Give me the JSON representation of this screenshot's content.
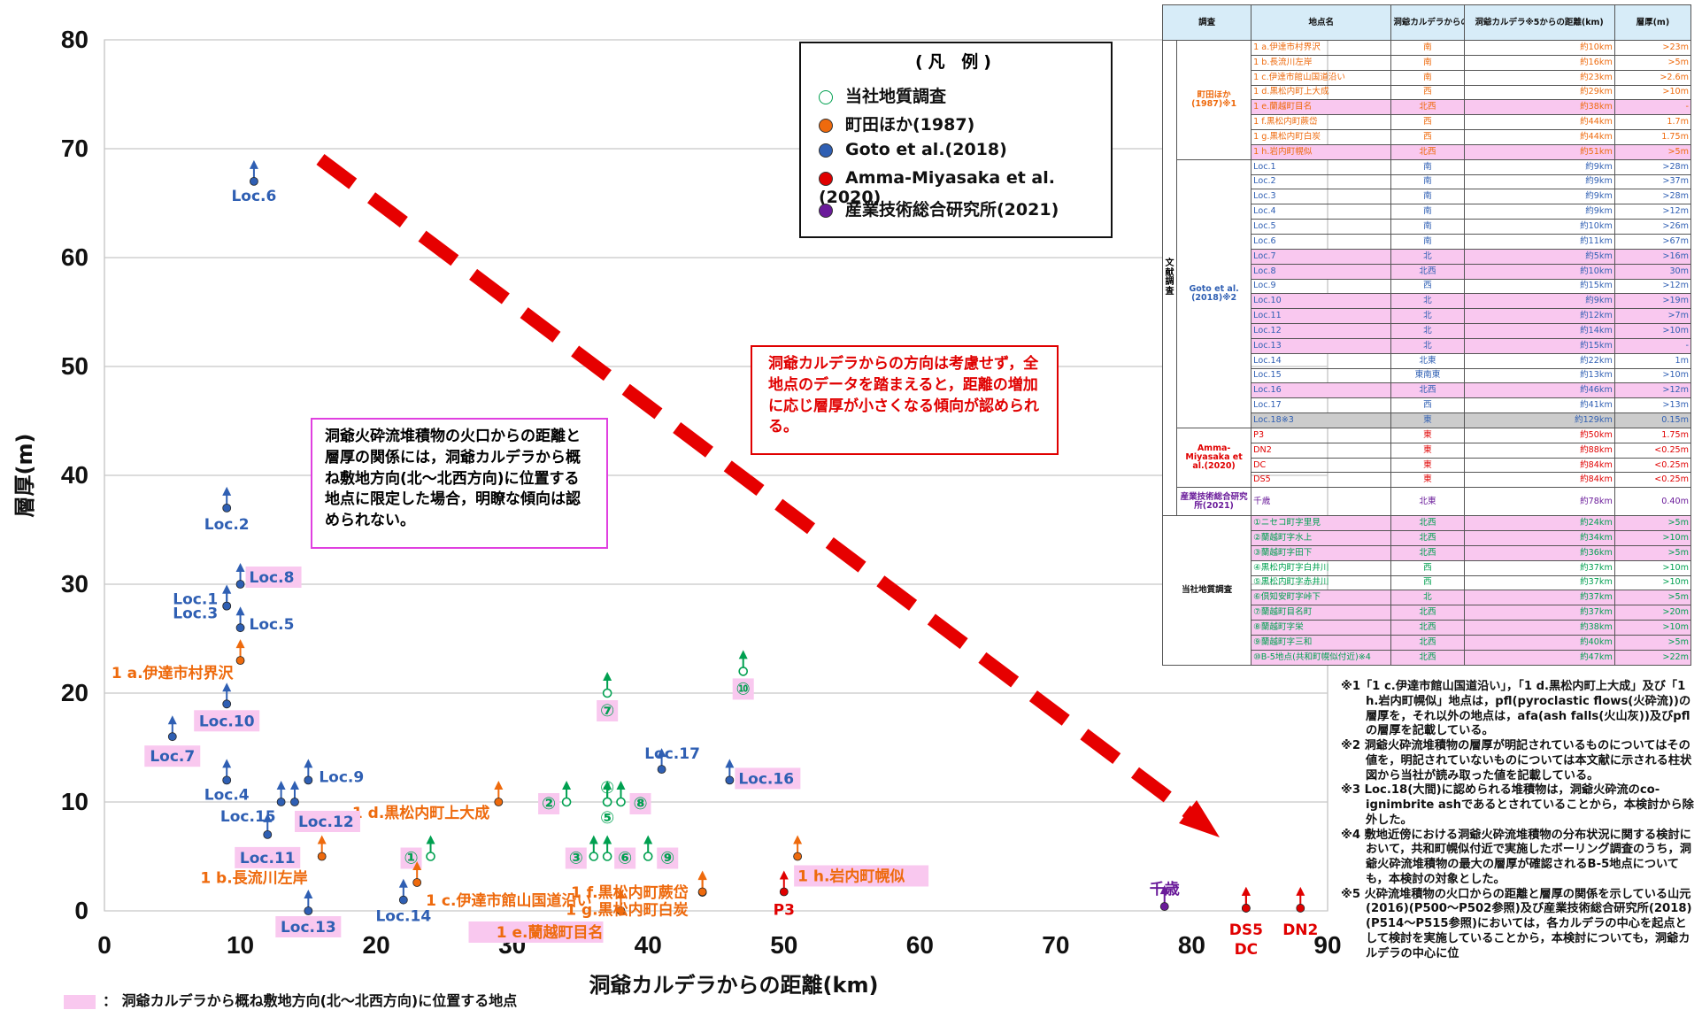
{
  "chart_data": {
    "type": "scatter",
    "xlabel": "洞爺カルデラからの距離(km)",
    "ylabel": "層厚(m)",
    "xlim": [
      0,
      90
    ],
    "ylim": [
      0,
      80
    ],
    "xticks": [
      "0",
      "10",
      "20",
      "30",
      "40",
      "50",
      "60",
      "70",
      "80",
      "90"
    ],
    "yticks": [
      "0",
      "10",
      "20",
      "30",
      "40",
      "50",
      "60",
      "70",
      "80"
    ],
    "grid": "horizontal",
    "legend_placement": "top-right",
    "series": [
      {
        "name": "当社地質調査",
        "color": "#00a050",
        "marker": "open-circle",
        "points": [
          {
            "label": "①",
            "x": 24,
            "y": 5
          },
          {
            "label": "②",
            "x": 34,
            "y": 10
          },
          {
            "label": "③",
            "x": 36,
            "y": 5
          },
          {
            "label": "④",
            "x": 37,
            "y": 10
          },
          {
            "label": "⑤",
            "x": 37,
            "y": 10
          },
          {
            "label": "⑥",
            "x": 37,
            "y": 5
          },
          {
            "label": "⑦",
            "x": 37,
            "y": 20
          },
          {
            "label": "⑧",
            "x": 38,
            "y": 10
          },
          {
            "label": "⑨",
            "x": 40,
            "y": 5
          },
          {
            "label": "⑩",
            "x": 47,
            "y": 22
          }
        ]
      },
      {
        "name": "町田ほか(1987)",
        "color": "#ee6a0d",
        "marker": "filled-circle",
        "points": [
          {
            "label": "1 a.伊達市村界沢",
            "x": 10,
            "y": 23
          },
          {
            "label": "1 b.長流川左岸",
            "x": 16,
            "y": 5
          },
          {
            "label": "1 c.伊達市館山国道沿い",
            "x": 23,
            "y": 2.6
          },
          {
            "label": "1 d.黒松内町上大成",
            "x": 29,
            "y": 10
          },
          {
            "label": "1 e.蘭越町目名",
            "x": 38,
            "y": 0
          },
          {
            "label": "1 f.黒松内町蕨岱",
            "x": 44,
            "y": 1.7
          },
          {
            "label": "1 g.黒松内町白炭",
            "x": 44,
            "y": 1.75
          },
          {
            "label": "1 h.岩内町幌似",
            "x": 51,
            "y": 5
          }
        ]
      },
      {
        "name": "Goto et al.(2018)",
        "color": "#2f5fb3",
        "marker": "filled-circle",
        "points": [
          {
            "label": "Loc.1",
            "x": 9,
            "y": 28
          },
          {
            "label": "Loc.2",
            "x": 9,
            "y": 37
          },
          {
            "label": "Loc.3",
            "x": 9,
            "y": 28
          },
          {
            "label": "Loc.4",
            "x": 9,
            "y": 12
          },
          {
            "label": "Loc.5",
            "x": 10,
            "y": 26
          },
          {
            "label": "Loc.6",
            "x": 11,
            "y": 67
          },
          {
            "label": "Loc.7",
            "x": 5,
            "y": 16
          },
          {
            "label": "Loc.8",
            "x": 10,
            "y": 30
          },
          {
            "label": "Loc.9",
            "x": 15,
            "y": 12
          },
          {
            "label": "Loc.10",
            "x": 9,
            "y": 19
          },
          {
            "label": "Loc.11",
            "x": 12,
            "y": 7
          },
          {
            "label": "Loc.12",
            "x": 14,
            "y": 10
          },
          {
            "label": "Loc.13",
            "x": 15,
            "y": 0
          },
          {
            "label": "Loc.14",
            "x": 22,
            "y": 1
          },
          {
            "label": "Loc.15",
            "x": 13,
            "y": 10
          },
          {
            "label": "Loc.16",
            "x": 46,
            "y": 12
          },
          {
            "label": "Loc.17",
            "x": 41,
            "y": 13
          }
        ]
      },
      {
        "name": "Amma-Miyasaka et al.(2020)",
        "color": "#e00000",
        "marker": "filled-circle",
        "points": [
          {
            "label": "P3",
            "x": 50,
            "y": 1.75
          },
          {
            "label": "DN2",
            "x": 88,
            "y": 0.25
          },
          {
            "label": "DC",
            "x": 84,
            "y": 0.25
          },
          {
            "label": "DS5",
            "x": 84,
            "y": 0.25
          }
        ]
      },
      {
        "name": "産業技術総合研究所(2021)",
        "color": "#6a1b9a",
        "marker": "filled-circle",
        "points": [
          {
            "label": "千歳",
            "x": 78,
            "y": 0.4
          }
        ]
      }
    ],
    "annotations": [
      "洞爺火砕流堆積物の火口からの距離と層厚の関係には，洞爺カルデラから概ね敷地方向(北～北西方向)に位置する地点に限定した場合，明瞭な傾向は認められない。",
      "洞爺カルデラからの方向は考慮せず，全地点のデータを踏まえると，距離の増加に応じ層厚が小さくなる傾向が認められる。"
    ]
  },
  "legend": {
    "title": "(凡 例)",
    "items": [
      {
        "label": "当社地質調査",
        "color": "#00a050",
        "style": "open"
      },
      {
        "label": "町田ほか(1987)",
        "color": "#ee6a0d",
        "style": "filled"
      },
      {
        "label": "Goto et al.(2018)",
        "color": "#2f5fb3",
        "style": "filled"
      },
      {
        "label": "Amma-Miyasaka et al.(2020)",
        "color": "#e00000",
        "style": "filled"
      },
      {
        "label": "産業技術総合研究所(2021)",
        "color": "#6a1b9a",
        "style": "filled"
      }
    ]
  },
  "annotation_left": "洞爺火砕流堆積物の火口からの距離と層厚の関係には，洞爺カルデラから概ね敷地方向(北～北西方向)に位置する地点に限定した場合，明瞭な傾向は認められない。",
  "annotation_right": "洞爺カルデラからの方向は考慮せず，全地点のデータを踏まえると，距離の増加に応じ層厚が小さくなる傾向が認められる。",
  "footnote_legend": "： 洞爺カルデラから概ね敷地方向(北～北西方向)に位置する地点",
  "table": {
    "headers": [
      "調査",
      "地点名",
      "洞爺カルデラからの方向",
      "洞爺カルデラ※5からの距離(km)",
      "層厚(m)"
    ],
    "category_literature": "文献調査",
    "category_company": "当社地質調査",
    "groups": [
      {
        "name": "町田ほか(1987)※1",
        "color": "c-or",
        "rows": [
          {
            "site": "1 a.伊達市村界沢",
            "dir": "南",
            "dist": "約10km",
            "thick": ">23m",
            "pink": false
          },
          {
            "site": "1 b.長流川左岸",
            "dir": "南",
            "dist": "約16km",
            "thick": ">5m",
            "pink": false
          },
          {
            "site": "1 c.伊達市館山国道沿い",
            "dir": "南",
            "dist": "約23km",
            "thick": ">2.6m",
            "pink": false
          },
          {
            "site": "1 d.黒松内町上大成",
            "dir": "西",
            "dist": "約29km",
            "thick": ">10m",
            "pink": false
          },
          {
            "site": "1 e.蘭越町目名",
            "dir": "北西",
            "dist": "約38km",
            "thick": "-",
            "pink": true
          },
          {
            "site": "1 f.黒松内町蕨岱",
            "dir": "西",
            "dist": "約44km",
            "thick": "1.7m",
            "pink": false
          },
          {
            "site": "1 g.黒松内町白炭",
            "dir": "西",
            "dist": "約44km",
            "thick": "1.75m",
            "pink": false
          },
          {
            "site": "1 h.岩内町幌似",
            "dir": "北西",
            "dist": "約51km",
            "thick": ">5m",
            "pink": true
          }
        ]
      },
      {
        "name": "Goto et al.(2018)※2",
        "color": "c-bl",
        "rows": [
          {
            "site": "Loc.1",
            "dir": "南",
            "dist": "約9km",
            "thick": ">28m",
            "pink": false
          },
          {
            "site": "Loc.2",
            "dir": "南",
            "dist": "約9km",
            "thick": ">37m",
            "pink": false
          },
          {
            "site": "Loc.3",
            "dir": "南",
            "dist": "約9km",
            "thick": ">28m",
            "pink": false
          },
          {
            "site": "Loc.4",
            "dir": "南",
            "dist": "約9km",
            "thick": ">12m",
            "pink": false
          },
          {
            "site": "Loc.5",
            "dir": "南",
            "dist": "約10km",
            "thick": ">26m",
            "pink": false
          },
          {
            "site": "Loc.6",
            "dir": "南",
            "dist": "約11km",
            "thick": ">67m",
            "pink": false
          },
          {
            "site": "Loc.7",
            "dir": "北",
            "dist": "約5km",
            "thick": ">16m",
            "pink": true
          },
          {
            "site": "Loc.8",
            "dir": "北西",
            "dist": "約10km",
            "thick": "30m",
            "pink": true
          },
          {
            "site": "Loc.9",
            "dir": "西",
            "dist": "約15km",
            "thick": ">12m",
            "pink": false
          },
          {
            "site": "Loc.10",
            "dir": "北",
            "dist": "約9km",
            "thick": ">19m",
            "pink": true
          },
          {
            "site": "Loc.11",
            "dir": "北",
            "dist": "約12km",
            "thick": ">7m",
            "pink": true
          },
          {
            "site": "Loc.12",
            "dir": "北",
            "dist": "約14km",
            "thick": ">10m",
            "pink": true
          },
          {
            "site": "Loc.13",
            "dir": "北",
            "dist": "約15km",
            "thick": "-",
            "pink": true
          },
          {
            "site": "Loc.14",
            "dir": "北東",
            "dist": "約22km",
            "thick": "1m",
            "pink": false
          },
          {
            "site": "Loc.15",
            "dir": "東南東",
            "dist": "約13km",
            "thick": ">10m",
            "pink": false
          },
          {
            "site": "Loc.16",
            "dir": "北西",
            "dist": "約46km",
            "thick": ">12m",
            "pink": true
          },
          {
            "site": "Loc.17",
            "dir": "西",
            "dist": "約41km",
            "thick": ">13m",
            "pink": false
          },
          {
            "site": "Loc.18※3",
            "dir": "東",
            "dist": "約129km",
            "thick": "0.15m",
            "pink": false,
            "gray": true
          }
        ]
      },
      {
        "name": "Amma-Miyasaka et al.(2020)",
        "color": "c-rd",
        "rows": [
          {
            "site": "P3",
            "dir": "東",
            "dist": "約50km",
            "thick": "1.75m",
            "pink": false
          },
          {
            "site": "DN2",
            "dir": "東",
            "dist": "約88km",
            "thick": "<0.25m",
            "pink": false
          },
          {
            "site": "DC",
            "dir": "東",
            "dist": "約84km",
            "thick": "<0.25m",
            "pink": false
          },
          {
            "site": "DS5",
            "dir": "東",
            "dist": "約84km",
            "thick": "<0.25m",
            "pink": false
          }
        ]
      },
      {
        "name": "産業技術総合研究所(2021)",
        "color": "c-pu",
        "rows": [
          {
            "site": "千歳",
            "dir": "北東",
            "dist": "約78km",
            "thick": "0.40m",
            "pink": false
          }
        ]
      },
      {
        "name": "",
        "color": "c-gr",
        "rows": [
          {
            "site": "①ニセコ町字里見",
            "dir": "北西",
            "dist": "約24km",
            "thick": ">5m",
            "pink": true
          },
          {
            "site": "②蘭越町字水上",
            "dir": "北西",
            "dist": "約34km",
            "thick": ">10m",
            "pink": true
          },
          {
            "site": "③蘭越町字田下",
            "dir": "北西",
            "dist": "約36km",
            "thick": ">5m",
            "pink": true
          },
          {
            "site": "④黒松内町字白井川",
            "dir": "西",
            "dist": "約37km",
            "thick": ">10m",
            "pink": false
          },
          {
            "site": "⑤黒松内町字赤井川",
            "dir": "西",
            "dist": "約37km",
            "thick": ">10m",
            "pink": false
          },
          {
            "site": "⑥倶知安町字峠下",
            "dir": "北",
            "dist": "約37km",
            "thick": ">5m",
            "pink": true
          },
          {
            "site": "⑦蘭越町目名町",
            "dir": "北西",
            "dist": "約37km",
            "thick": ">20m",
            "pink": true
          },
          {
            "site": "⑧蘭越町字栄",
            "dir": "北西",
            "dist": "約38km",
            "thick": ">10m",
            "pink": true
          },
          {
            "site": "⑨蘭越町字三和",
            "dir": "北西",
            "dist": "約40km",
            "thick": ">5m",
            "pink": true
          },
          {
            "site": "⑩B-5地点(共和町幌似付近)※4",
            "dir": "北西",
            "dist": "約47km",
            "thick": ">22m",
            "pink": true
          }
        ]
      }
    ]
  },
  "notes": [
    "※1「1 c.伊達市館山国道沿い」，「1 d.黒松内町上大成」及び「1 h.岩内町幌似」地点は，pfl(pyroclastic flows(火砕流))の層厚を，それ以外の地点は，afa(ash falls(火山灰))及びpflの層厚を記載している。",
    "※2 洞爺火砕流堆積物の層厚が明記されているものについてはその値を，明記されていないものについては本文献に示される柱状図から当社が読み取った値を記載している。",
    "※3 Loc.18(大間)に認められる堆積物は，洞爺火砕流のco-ignimbrite ashであるとされていることから，本検討から除外した。",
    "※4 敷地近傍における洞爺火砕流堆積物の分布状況に関する検討において，共和町幌似付近で実施したボーリング調査のうち，洞爺火砕流堆積物の最大の層厚が確認されるB-5地点についても，本検討の対象とした。",
    "※5 火砕流堆積物の火口からの距離と層厚の関係を示している山元(2016)(P500～P502参照)及び産業技術総合研究所(2018)(P514～P515参照)においては，各カルデラの中心を起点として検討を実施していることから，本検討についても，洞爺カルデラの中心に位"
  ]
}
